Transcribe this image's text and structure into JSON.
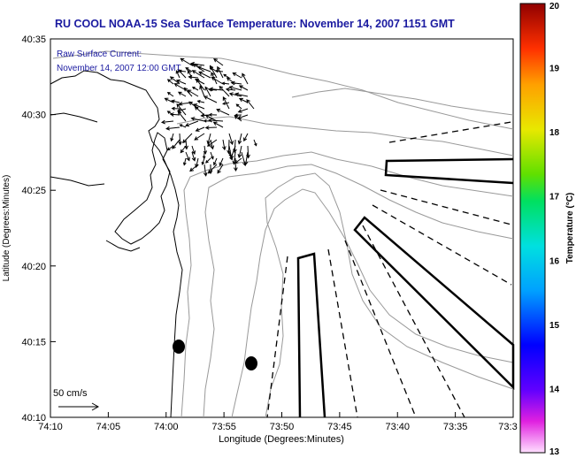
{
  "title": "RU COOL  NOAA-15  Sea Surface Temperature:  November 14, 2007 1151 GMT",
  "current_label_1": "Raw Surface Current:",
  "current_label_2": "November 14, 2007 12:00 GMT",
  "scale_label": "50 cm/s",
  "axes": {
    "xlabel": "Longitude (Degrees:Minutes)",
    "ylabel": "Latitude (Degrees:Minutes)",
    "x_ticks": [
      "74:10",
      "74:05",
      "74:00",
      "73:55",
      "73:50",
      "73:45",
      "73:40",
      "73:35",
      "73:3"
    ],
    "y_ticks": [
      "40:35",
      "40:30",
      "40:25",
      "40:20",
      "40:15",
      "40:10"
    ]
  },
  "colorbar": {
    "label": "Temperature (°C)",
    "ticks": [
      "20",
      "19",
      "18",
      "17",
      "16",
      "15",
      "14",
      "13"
    ],
    "min": 13,
    "max": 20
  }
}
